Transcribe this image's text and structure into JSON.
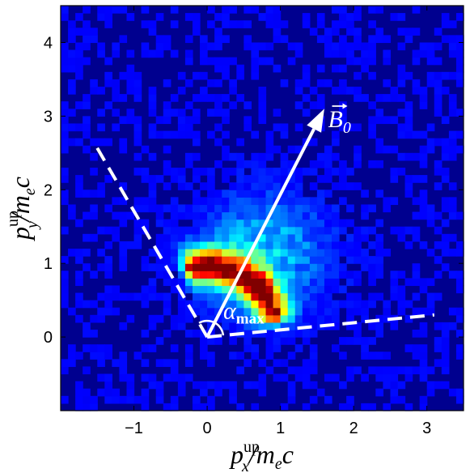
{
  "chart_data": {
    "type": "heatmap",
    "title": "",
    "xlim": [
      -2.0,
      3.5
    ],
    "ylim": [
      -1.0,
      4.5
    ],
    "x_ticks": [
      -1,
      0,
      1,
      2,
      3
    ],
    "y_ticks": [
      0,
      1,
      2,
      3,
      4
    ],
    "x_tick_labels": [
      "−1",
      "0",
      "1",
      "2",
      "3"
    ],
    "y_tick_labels": [
      "0",
      "1",
      "2",
      "3",
      "4"
    ],
    "xlabel": {
      "base": "p",
      "sup": "up",
      "sub": "x",
      "rest": "/m",
      "rest_sub": "e",
      "tail": "c"
    },
    "ylabel": {
      "base": "p",
      "sup": "up",
      "sub": "y",
      "rest": "/m",
      "rest_sub": "e",
      "tail": "c"
    },
    "colormap": "jet",
    "background_color": "#00008f",
    "grid": false,
    "bin_size": 0.1,
    "density_model": {
      "arc_center": [
        0.0,
        0.0
      ],
      "arc_radius": 1.02,
      "arc_width": 0.1,
      "arc_angle_from_deg": 18,
      "arc_angle_to_deg": 102,
      "hot_spots": [
        [
          0.02,
          1.0
        ],
        [
          0.7,
          0.7
        ]
      ],
      "halo_center": [
        0.75,
        1.15
      ],
      "halo_sigma": [
        0.8,
        0.7
      ]
    },
    "annotations": {
      "dashed_line_1": {
        "from": [
          0.0,
          0.0
        ],
        "to": [
          -1.55,
          2.65
        ]
      },
      "dashed_line_2": {
        "from": [
          0.0,
          0.0
        ],
        "to": [
          3.1,
          0.3
        ]
      },
      "arrow_B0": {
        "from": [
          0.0,
          0.0
        ],
        "to": [
          1.6,
          3.1
        ],
        "label": "B",
        "label_sub": "0",
        "label_pos": [
          1.65,
          2.85
        ]
      },
      "alpha_label": {
        "text": "α",
        "sub": "max",
        "pos": [
          0.22,
          0.25
        ]
      },
      "angle_arc_radius": 0.22,
      "color": "#ffffff"
    }
  }
}
